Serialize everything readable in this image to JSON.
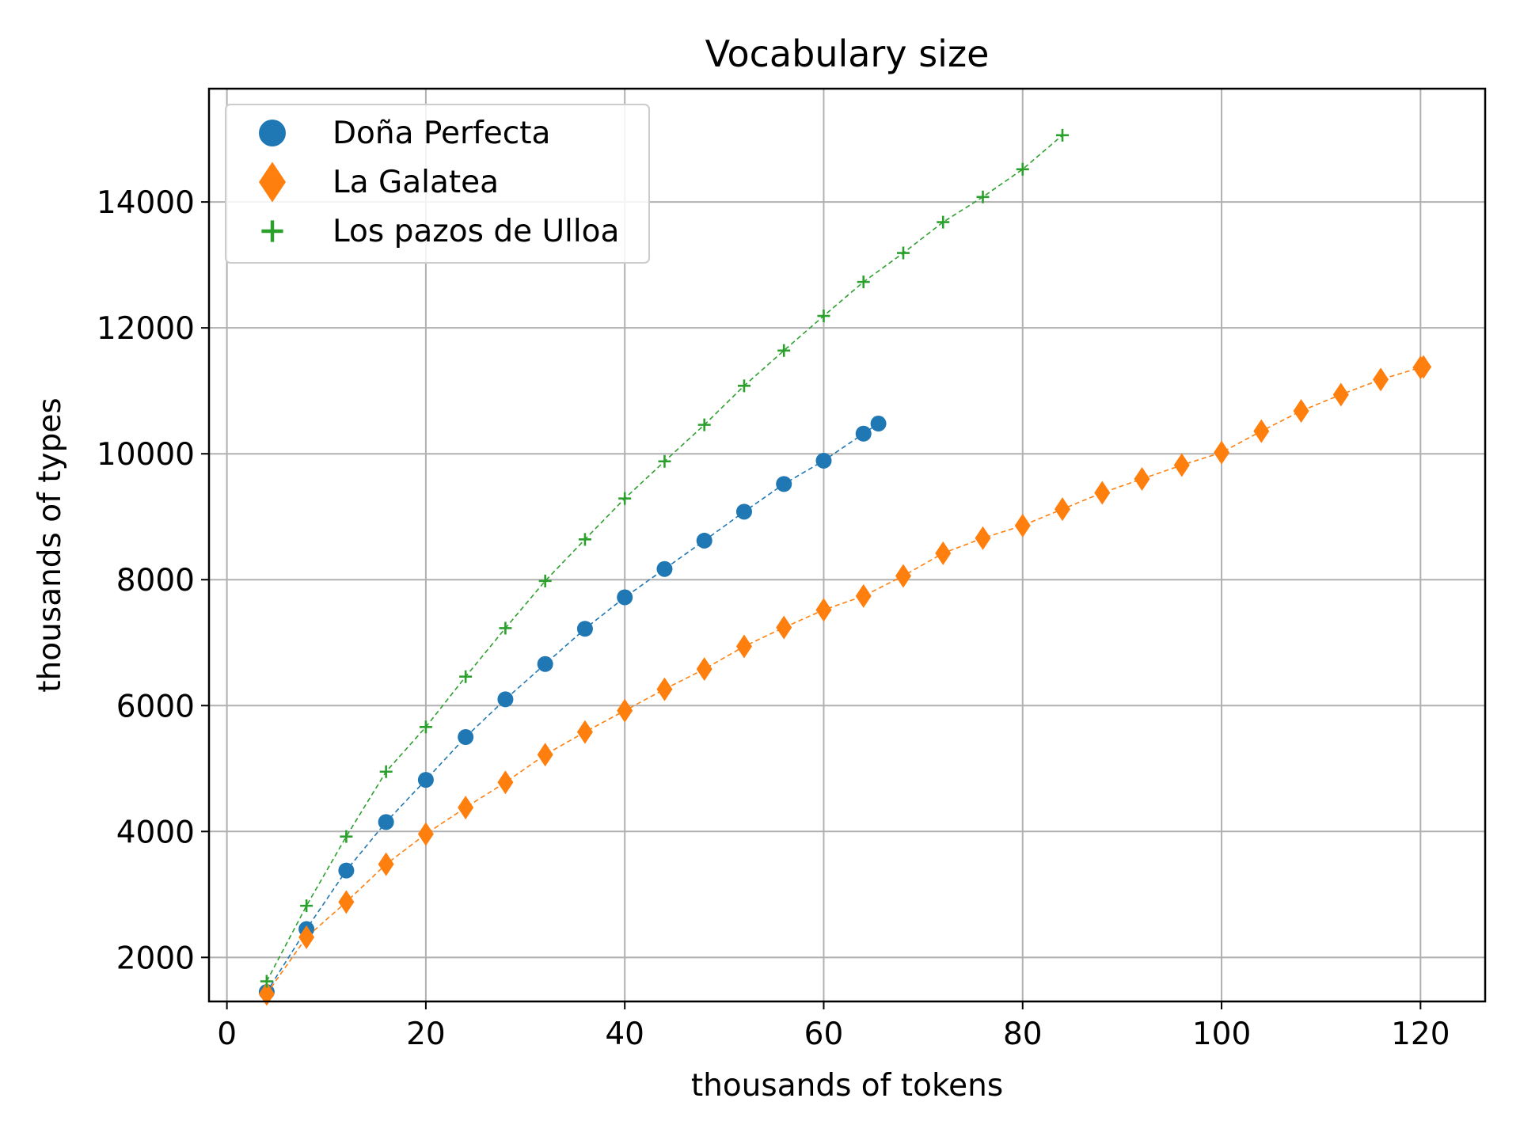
{
  "chart_data": {
    "type": "line",
    "title": "Vocabulary size",
    "xlabel": "thousands of tokens",
    "ylabel": "thousands of types",
    "xlim": [
      -1.8,
      126.5
    ],
    "ylim": [
      1300,
      15800
    ],
    "xticks": [
      0,
      20,
      40,
      60,
      80,
      100,
      120
    ],
    "yticks": [
      2000,
      4000,
      6000,
      8000,
      10000,
      12000,
      14000
    ],
    "grid": true,
    "legend_position": "upper left",
    "series": [
      {
        "name": "Doña Perfecta",
        "marker": "circle",
        "color": "#1f77b4",
        "x": [
          4,
          8,
          12,
          16,
          20,
          24,
          28,
          32,
          36,
          40,
          44,
          48,
          52,
          56,
          60,
          64,
          65.5
        ],
        "y": [
          1450,
          2450,
          3380,
          4150,
          4820,
          5500,
          6100,
          6660,
          7220,
          7720,
          8170,
          8620,
          9080,
          9520,
          9890,
          10320,
          10480
        ]
      },
      {
        "name": "La Galatea",
        "marker": "diamond",
        "color": "#ff7f0e",
        "x": [
          4,
          8,
          12,
          16,
          20,
          24,
          28,
          32,
          36,
          40,
          44,
          48,
          52,
          56,
          60,
          64,
          68,
          72,
          76,
          80,
          84,
          88,
          92,
          96,
          100,
          104,
          108,
          112,
          116,
          120,
          120.3
        ],
        "y": [
          1420,
          2320,
          2880,
          3480,
          3960,
          4380,
          4780,
          5220,
          5580,
          5920,
          6260,
          6580,
          6940,
          7240,
          7520,
          7740,
          8060,
          8420,
          8660,
          8860,
          9120,
          9380,
          9600,
          9820,
          10020,
          10360,
          10680,
          10940,
          11180,
          11370,
          11380
        ]
      },
      {
        "name": "Los pazos de Ulloa",
        "marker": "plus",
        "color": "#2ca02c",
        "x": [
          4,
          8,
          12,
          16,
          20,
          24,
          28,
          32,
          36,
          40,
          44,
          48,
          52,
          56,
          60,
          64,
          68,
          72,
          76,
          80,
          84
        ],
        "y": [
          1620,
          2820,
          3920,
          4950,
          5660,
          6460,
          7230,
          7980,
          8640,
          9290,
          9880,
          10460,
          11080,
          11640,
          12190,
          12730,
          13190,
          13680,
          14080,
          14520,
          15060
        ]
      }
    ]
  }
}
